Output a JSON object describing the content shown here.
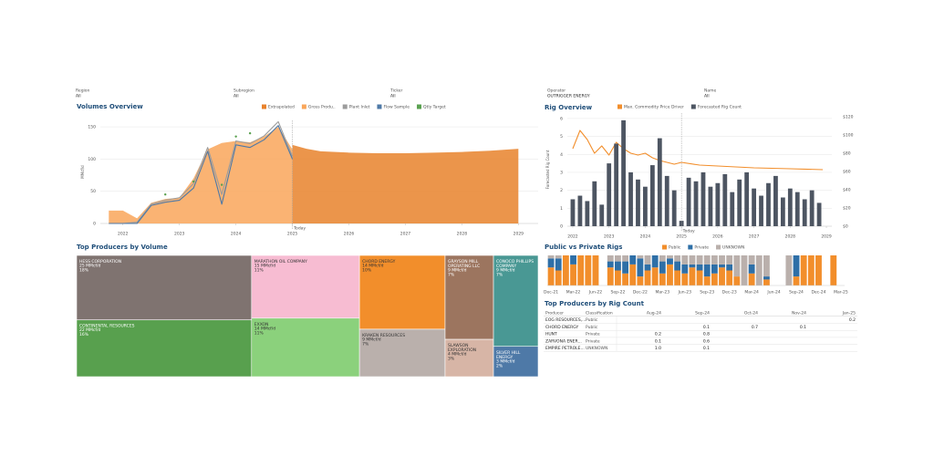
{
  "filters": [
    {
      "label": "Region",
      "value": "All"
    },
    {
      "label": "Subregion",
      "value": "All"
    },
    {
      "label": "Ticker",
      "value": "All"
    },
    {
      "label": "Operator",
      "value": "OUTRIGGER ENERGY"
    },
    {
      "label": "Name",
      "value": "All"
    }
  ],
  "chart_data": [
    {
      "type": "area",
      "title": "Volumes Overview",
      "ylabel": "MMcf/d",
      "xlim": [
        2021.6,
        2029.35
      ],
      "ylim": [
        0,
        160
      ],
      "xticks": [
        2022,
        2023,
        2024,
        2025,
        2026,
        2027,
        2028,
        2029
      ],
      "yticks": [
        0,
        50,
        100,
        150
      ],
      "grid": true,
      "legend": "top",
      "annotations": [
        {
          "x": 2025,
          "text": "Today"
        }
      ],
      "series": [
        {
          "name": "Extrapolated",
          "color": "#e8822c",
          "type": "area",
          "x": [
            2025,
            2025.25,
            2025.5,
            2026,
            2026.5,
            2027,
            2027.5,
            2028,
            2028.5,
            2029
          ],
          "values": [
            122,
            116,
            112,
            110,
            109,
            109,
            110,
            111,
            113,
            116
          ]
        },
        {
          "name": "Gross Produ..",
          "color": "#f9a65a",
          "type": "area",
          "x": [
            2021.75,
            2022,
            2022.25,
            2022.5,
            2022.75,
            2023,
            2023.25,
            2023.5,
            2023.75,
            2024,
            2024.25,
            2024.5,
            2024.75,
            2025
          ],
          "values": [
            20,
            20,
            8,
            32,
            38,
            40,
            70,
            115,
            125,
            128,
            126,
            135,
            150,
            115
          ]
        },
        {
          "name": "Plant Inlet",
          "color": "#9c9c9c",
          "type": "line",
          "x": [
            2021.75,
            2022,
            2022.25,
            2022.5,
            2022.75,
            2023,
            2023.25,
            2023.5,
            2023.75,
            2024,
            2024.25,
            2024.5,
            2024.75,
            2025
          ],
          "values": [
            0,
            0,
            2,
            30,
            36,
            40,
            62,
            118,
            45,
            128,
            124,
            136,
            158,
            104
          ]
        },
        {
          "name": "Flow Sample",
          "color": "#4e79a7",
          "type": "line",
          "x": [
            2021.75,
            2022,
            2022.25,
            2022.5,
            2022.75,
            2023,
            2023.25,
            2023.5,
            2023.75,
            2024,
            2024.25,
            2024.5,
            2024.75,
            2025
          ],
          "values": [
            0,
            0,
            0,
            28,
            33,
            36,
            55,
            112,
            30,
            122,
            118,
            130,
            152,
            100
          ]
        },
        {
          "name": "Qtly Target",
          "color": "#59a14f",
          "type": "scatter",
          "x": [
            2022.75,
            2023.25,
            2023.75,
            2024,
            2024.25
          ],
          "values": [
            45,
            65,
            60,
            135,
            140
          ]
        }
      ]
    },
    {
      "type": "combo",
      "title": "Rig Overview",
      "ylabel": "Forecasted Rig Count",
      "xlim": [
        2021.85,
        2029.15
      ],
      "ylim": [
        0,
        6.3
      ],
      "y2lim": [
        0,
        124
      ],
      "xticks": [
        2022,
        2023,
        2024,
        2025,
        2026,
        2027,
        2028,
        2029
      ],
      "yticks": [
        0,
        1,
        2,
        3,
        4,
        5,
        6
      ],
      "y2ticks": [
        {
          "value": 0,
          "label": "$0"
        },
        {
          "value": 20,
          "label": "$20"
        },
        {
          "value": 40,
          "label": "$40"
        },
        {
          "value": 60,
          "label": "$60"
        },
        {
          "value": 80,
          "label": "$80"
        },
        {
          "value": 100,
          "label": "$100"
        },
        {
          "value": 120,
          "label": "$120"
        }
      ],
      "grid": true,
      "legend": "top",
      "annotations": [
        {
          "x": 2025,
          "text": "Today"
        }
      ],
      "series": [
        {
          "name": "Max. Commodity Price Driver",
          "color": "#f28e2b",
          "type": "line",
          "axis": "y2",
          "x": [
            2022,
            2022.2,
            2022.4,
            2022.6,
            2022.8,
            2023,
            2023.2,
            2023.4,
            2023.6,
            2023.8,
            2024,
            2024.2,
            2024.4,
            2024.6,
            2024.8,
            2025,
            2025.5,
            2026,
            2027,
            2028,
            2028.9
          ],
          "values": [
            85,
            105,
            95,
            80,
            88,
            78,
            92,
            85,
            80,
            78,
            80,
            75,
            72,
            70,
            68,
            70,
            67,
            66,
            64,
            63,
            62
          ]
        },
        {
          "name": "Forecasted Rig Count",
          "color": "#4d5562",
          "type": "bar",
          "axis": "y",
          "x": [
            2022,
            2022.2,
            2022.4,
            2022.6,
            2022.8,
            2023,
            2023.2,
            2023.4,
            2023.6,
            2023.8,
            2024,
            2024.2,
            2024.4,
            2024.6,
            2024.8,
            2025,
            2025.2,
            2025.4,
            2025.6,
            2025.8,
            2026,
            2026.2,
            2026.4,
            2026.6,
            2026.8,
            2027,
            2027.2,
            2027.4,
            2027.6,
            2027.8,
            2028,
            2028.2,
            2028.4,
            2028.6,
            2028.8
          ],
          "values": [
            1.5,
            1.7,
            1.4,
            2.5,
            1.2,
            3.5,
            4.6,
            5.9,
            3.0,
            2.6,
            2.2,
            3.4,
            4.9,
            2.8,
            2.0,
            0.3,
            2.7,
            2.5,
            3.0,
            2.2,
            2.4,
            2.9,
            1.9,
            2.6,
            3.0,
            2.1,
            1.7,
            2.4,
            2.8,
            1.6,
            2.1,
            1.9,
            1.5,
            2.0,
            1.3
          ]
        }
      ]
    },
    {
      "type": "treemap",
      "title": "Top Producers by Volume",
      "categories": [
        "HESS CORPORATION",
        "CONTINENTAL RESOURCES",
        "MARATHON OIL COMPANY",
        "EXXON",
        "CHORD ENERGY",
        "KRAKEN RESOURCES",
        "GRAYSON MILL OPERATING LLC",
        "CONOCO PHILLIPS COMPANY",
        "SLAWSON EXPLORATION",
        "SILVER HILL ENERGY"
      ],
      "values": [
        25,
        22,
        15,
        14,
        14,
        9,
        9,
        9,
        4,
        3
      ],
      "value_labels": [
        "25 MMcf/d",
        "22 MMcf/d",
        "15 MMcf/d",
        "14 MMcf/d",
        "14 MMcf/d",
        "9 MMcf/d",
        "9 MMcf/d",
        "9 MMcf/d",
        "4 MMcf/d",
        "3 MMcf/d"
      ],
      "shares": [
        18,
        16,
        11,
        11,
        10,
        7,
        7,
        7,
        3,
        2
      ],
      "share_labels": [
        "18%",
        "16%",
        "11%",
        "11%",
        "10%",
        "7%",
        "7%",
        "7%",
        "3%",
        "2%"
      ],
      "colors": [
        "#7f7370",
        "#58a04e",
        "#f7bcd2",
        "#8bd17c",
        "#f28e2b",
        "#bab0ac",
        "#9c755f",
        "#499894",
        "#d7b5a6",
        "#4e79a7"
      ]
    },
    {
      "type": "stacked_bar",
      "title": "Public vs Private Rigs",
      "ylim": [
        0,
        100
      ],
      "legend": "top",
      "categories": [
        "Dec-21",
        null,
        null,
        "Mar-22",
        null,
        null,
        "Jun-22",
        null,
        null,
        "Sep-22",
        null,
        null,
        "Dec-22",
        null,
        null,
        "Mar-23",
        null,
        null,
        "Jun-23",
        null,
        null,
        "Sep-23",
        null,
        null,
        "Dec-23",
        null,
        null,
        "Mar-24",
        null,
        null,
        "Jun-24",
        null,
        null,
        "Sep-24",
        null,
        null,
        "Dec-24",
        null,
        null,
        "Mar-25"
      ],
      "series": [
        {
          "name": "Public",
          "color": "#f28e2b",
          "values": [
            60,
            50,
            100,
            70,
            100,
            100,
            100,
            null,
            60,
            50,
            40,
            70,
            30,
            50,
            60,
            40,
            70,
            50,
            40,
            60,
            50,
            30,
            40,
            60,
            50,
            30,
            0,
            40,
            0,
            20,
            null,
            null,
            0,
            30,
            100,
            100,
            100,
            null,
            100,
            null
          ]
        },
        {
          "name": "Private",
          "color": "#2e6fa7",
          "values": [
            30,
            40,
            0,
            30,
            0,
            0,
            0,
            null,
            20,
            30,
            40,
            30,
            60,
            20,
            40,
            40,
            20,
            30,
            30,
            10,
            20,
            40,
            30,
            10,
            20,
            0,
            0,
            30,
            0,
            10,
            null,
            null,
            0,
            70,
            0,
            0,
            0,
            null,
            0,
            null
          ]
        },
        {
          "name": "UNKNOWN",
          "color": "#bab0ac",
          "values": [
            10,
            10,
            0,
            0,
            0,
            0,
            0,
            null,
            20,
            20,
            20,
            0,
            10,
            30,
            0,
            20,
            10,
            20,
            30,
            30,
            30,
            30,
            30,
            30,
            30,
            70,
            100,
            30,
            100,
            70,
            null,
            null,
            100,
            0,
            0,
            0,
            0,
            null,
            0,
            null
          ]
        }
      ]
    }
  ],
  "table": {
    "title": "Top Producers by Rig Count",
    "columns": [
      "Producer",
      "Classification",
      "Aug-24",
      "Sep-24",
      "Oct-24",
      "Nov-24",
      "Jan-25"
    ],
    "rows": [
      [
        "EOG RESOURCES,...",
        "Public",
        null,
        null,
        null,
        null,
        "0.2"
      ],
      [
        "CHORD ENERGY",
        "Public",
        null,
        "0.1",
        "0.7",
        "0.1",
        null
      ],
      [
        "HUNT",
        "Private",
        "0.2",
        "0.8",
        null,
        null,
        null
      ],
      [
        "ZARVONA ENER...",
        "Private",
        "0.1",
        "0.6",
        null,
        null,
        null
      ],
      [
        "EMPIRE PETROLE...",
        "UNKNOWN",
        "1.0",
        "0.1",
        null,
        null,
        null
      ]
    ]
  }
}
